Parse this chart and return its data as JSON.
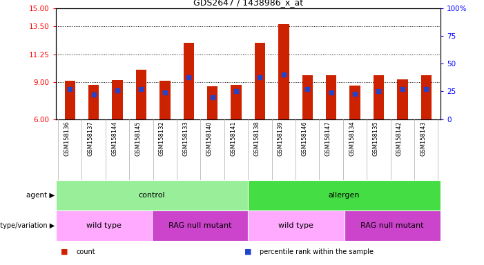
{
  "title": "GDS2647 / 1438986_x_at",
  "samples": [
    "GSM158136",
    "GSM158137",
    "GSM158144",
    "GSM158145",
    "GSM158132",
    "GSM158133",
    "GSM158140",
    "GSM158141",
    "GSM158138",
    "GSM158139",
    "GSM158146",
    "GSM158147",
    "GSM158134",
    "GSM158135",
    "GSM158142",
    "GSM158143"
  ],
  "bar_heights": [
    9.1,
    8.8,
    9.15,
    10.0,
    9.1,
    12.2,
    8.65,
    8.8,
    12.2,
    13.7,
    9.55,
    9.55,
    8.7,
    9.55,
    9.2,
    9.55
  ],
  "blue_values": [
    27,
    22,
    26,
    27,
    24,
    38,
    20,
    25,
    38,
    40,
    27,
    24,
    23,
    25,
    27,
    27
  ],
  "ylim_left": [
    6,
    15
  ],
  "ylim_right": [
    0,
    100
  ],
  "yticks_left": [
    6,
    9,
    11.25,
    13.5,
    15
  ],
  "yticks_right": [
    0,
    25,
    50,
    75,
    100
  ],
  "bar_color": "#cc2200",
  "blue_color": "#2244cc",
  "bar_bottom": 6,
  "agent_groups": [
    {
      "label": "control",
      "start": 0,
      "end": 8,
      "color": "#99ee99"
    },
    {
      "label": "allergen",
      "start": 8,
      "end": 16,
      "color": "#44dd44"
    }
  ],
  "genotype_groups": [
    {
      "label": "wild type",
      "start": 0,
      "end": 4,
      "color": "#ffaaff"
    },
    {
      "label": "RAG null mutant",
      "start": 4,
      "end": 8,
      "color": "#cc44cc"
    },
    {
      "label": "wild type",
      "start": 8,
      "end": 12,
      "color": "#ffaaff"
    },
    {
      "label": "RAG null mutant",
      "start": 12,
      "end": 16,
      "color": "#cc44cc"
    }
  ],
  "agent_label": "agent",
  "genotype_label": "genotype/variation",
  "legend_items": [
    {
      "label": "count",
      "color": "#cc2200"
    },
    {
      "label": "percentile rank within the sample",
      "color": "#2244cc"
    }
  ],
  "grid_lines": [
    9.0,
    11.25,
    13.5
  ],
  "bar_width": 0.45
}
